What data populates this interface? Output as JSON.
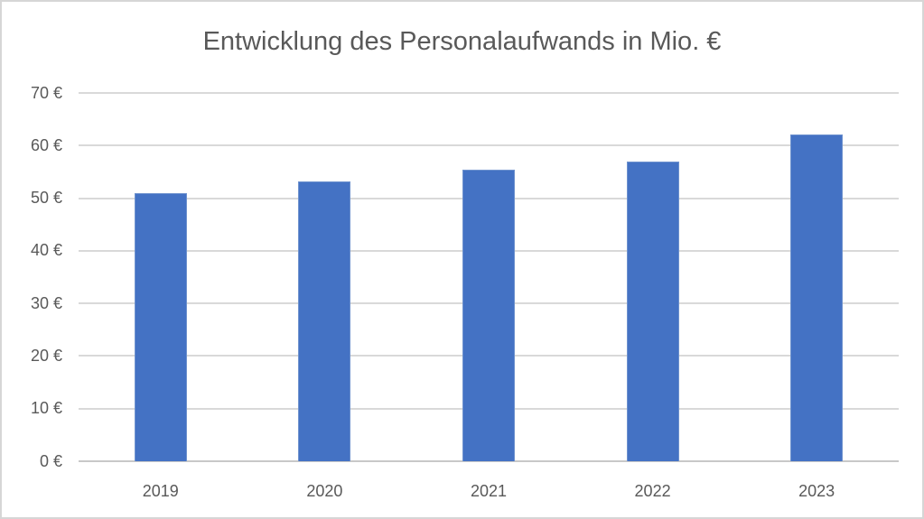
{
  "chart_data": {
    "type": "bar",
    "title": "Entwicklung des Personalaufwands in Mio. €",
    "categories": [
      "2019",
      "2020",
      "2021",
      "2022",
      "2023"
    ],
    "values": [
      51.0,
      53.2,
      55.5,
      57.0,
      62.1
    ],
    "xlabel": "",
    "ylabel": "",
    "ylim": [
      0,
      70
    ],
    "ytick_step": 10,
    "ytick_suffix": " €",
    "grid": true,
    "legend": false,
    "colors": {
      "bar_fill": "#4472C4",
      "bar_border": "#6E92CE",
      "gridline": "#D9D9D9",
      "axis_line": "#C8C8C8",
      "text": "#595959",
      "frame_border": "#D6D6D6",
      "background": "#FFFFFF"
    }
  }
}
